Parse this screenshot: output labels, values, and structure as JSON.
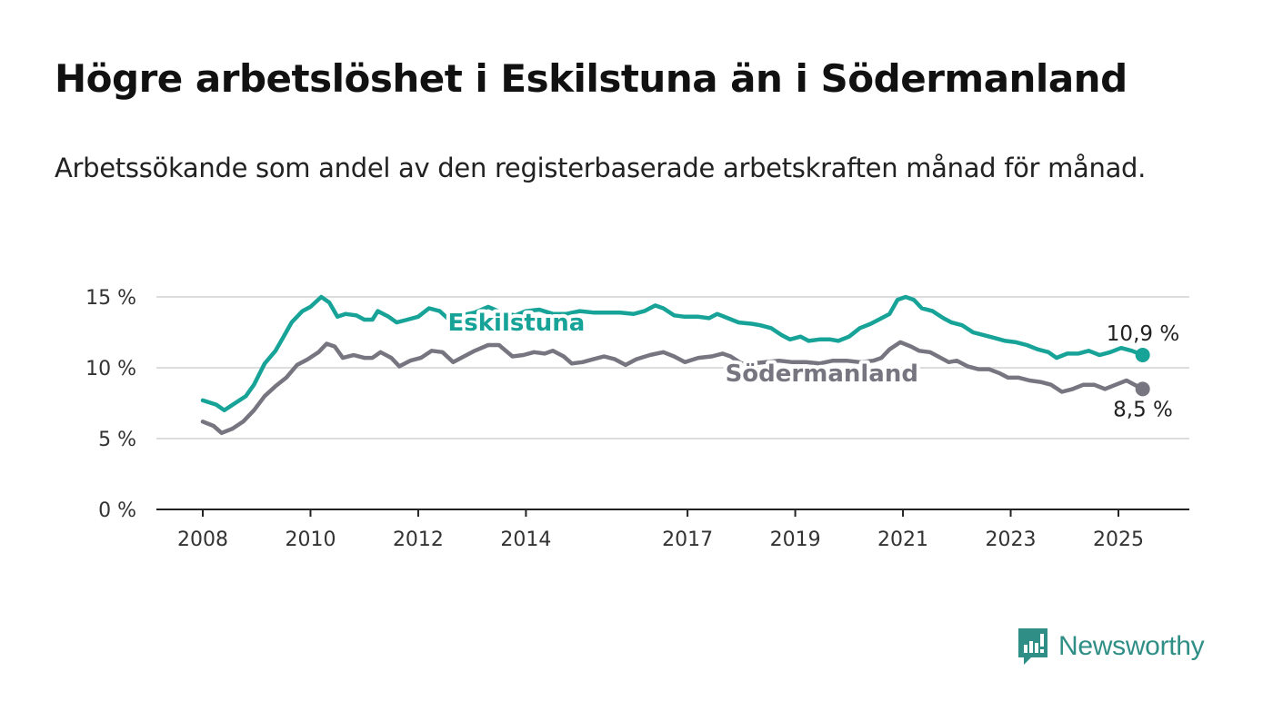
{
  "title": "Högre arbetslöshet i Eskilstuna än i Södermanland",
  "subtitle": "Arbetssökande som andel av den registerbaserade arbetskraften månad för månad.",
  "brand": {
    "name": "Newsworthy",
    "icon": "newsworthy-logo-icon",
    "color": "#2f8f86"
  },
  "chart_data": {
    "type": "line",
    "title": "Högre arbetslöshet i Eskilstuna än i Södermanland",
    "subtitle": "Arbetssökande som andel av den registerbaserade arbetskraften månad för månad.",
    "xlabel": "",
    "ylabel": "",
    "xlim": [
      2007.8,
      2026.3
    ],
    "ylim": [
      0,
      15
    ],
    "y_ticks": [
      0,
      5,
      10,
      15
    ],
    "y_tick_labels": [
      "0 %",
      "5 %",
      "10 %",
      "15 %"
    ],
    "x_ticks": [
      2008,
      2010,
      2012,
      2014,
      2017,
      2019,
      2021,
      2023,
      2025
    ],
    "x_tick_labels": [
      "2008",
      "2010",
      "2012",
      "2014",
      "2017",
      "2019",
      "2021",
      "2023",
      "2025"
    ],
    "grid": "horizontal",
    "legend": "inline labels",
    "series": [
      {
        "name": "Eskilstuna",
        "color": "#17a398",
        "end_label": "10,9 %",
        "points": [
          [
            2008.0,
            7.7
          ],
          [
            2008.25,
            7.4
          ],
          [
            2008.4,
            7.0
          ],
          [
            2008.6,
            7.5
          ],
          [
            2008.8,
            8.0
          ],
          [
            2008.95,
            8.8
          ],
          [
            2009.15,
            10.3
          ],
          [
            2009.35,
            11.2
          ],
          [
            2009.5,
            12.2
          ],
          [
            2009.65,
            13.2
          ],
          [
            2009.85,
            14.0
          ],
          [
            2010.0,
            14.3
          ],
          [
            2010.2,
            15.0
          ],
          [
            2010.35,
            14.6
          ],
          [
            2010.5,
            13.6
          ],
          [
            2010.65,
            13.8
          ],
          [
            2010.85,
            13.7
          ],
          [
            2011.0,
            13.4
          ],
          [
            2011.15,
            13.4
          ],
          [
            2011.25,
            14.0
          ],
          [
            2011.45,
            13.6
          ],
          [
            2011.6,
            13.2
          ],
          [
            2011.8,
            13.4
          ],
          [
            2012.0,
            13.6
          ],
          [
            2012.2,
            14.2
          ],
          [
            2012.4,
            14.0
          ],
          [
            2012.6,
            13.3
          ],
          [
            2012.8,
            13.7
          ],
          [
            2013.05,
            13.9
          ],
          [
            2013.3,
            14.3
          ],
          [
            2013.55,
            13.9
          ],
          [
            2013.8,
            13.7
          ],
          [
            2014.0,
            14.0
          ],
          [
            2014.25,
            14.1
          ],
          [
            2014.5,
            13.8
          ],
          [
            2014.75,
            13.8
          ],
          [
            2015.0,
            14.0
          ],
          [
            2015.25,
            13.9
          ],
          [
            2015.5,
            13.9
          ],
          [
            2015.75,
            13.9
          ],
          [
            2016.0,
            13.8
          ],
          [
            2016.2,
            14.0
          ],
          [
            2016.4,
            14.4
          ],
          [
            2016.55,
            14.2
          ],
          [
            2016.75,
            13.7
          ],
          [
            2016.95,
            13.6
          ],
          [
            2017.2,
            13.6
          ],
          [
            2017.4,
            13.5
          ],
          [
            2017.55,
            13.8
          ],
          [
            2017.75,
            13.5
          ],
          [
            2017.95,
            13.2
          ],
          [
            2018.2,
            13.1
          ],
          [
            2018.35,
            13.0
          ],
          [
            2018.55,
            12.8
          ],
          [
            2018.75,
            12.3
          ],
          [
            2018.9,
            12.0
          ],
          [
            2019.1,
            12.2
          ],
          [
            2019.25,
            11.9
          ],
          [
            2019.45,
            12.0
          ],
          [
            2019.65,
            12.0
          ],
          [
            2019.8,
            11.9
          ],
          [
            2020.0,
            12.2
          ],
          [
            2020.2,
            12.8
          ],
          [
            2020.4,
            13.1
          ],
          [
            2020.55,
            13.4
          ],
          [
            2020.75,
            13.8
          ],
          [
            2020.9,
            14.8
          ],
          [
            2021.05,
            15.0
          ],
          [
            2021.2,
            14.8
          ],
          [
            2021.35,
            14.2
          ],
          [
            2021.55,
            14.0
          ],
          [
            2021.75,
            13.5
          ],
          [
            2021.9,
            13.2
          ],
          [
            2022.1,
            13.0
          ],
          [
            2022.3,
            12.5
          ],
          [
            2022.5,
            12.3
          ],
          [
            2022.7,
            12.1
          ],
          [
            2022.9,
            11.9
          ],
          [
            2023.1,
            11.8
          ],
          [
            2023.3,
            11.6
          ],
          [
            2023.5,
            11.3
          ],
          [
            2023.7,
            11.1
          ],
          [
            2023.85,
            10.7
          ],
          [
            2024.05,
            11.0
          ],
          [
            2024.25,
            11.0
          ],
          [
            2024.45,
            11.2
          ],
          [
            2024.65,
            10.9
          ],
          [
            2024.85,
            11.1
          ],
          [
            2025.05,
            11.4
          ],
          [
            2025.25,
            11.2
          ],
          [
            2025.45,
            10.9
          ]
        ]
      },
      {
        "name": "Södermanland",
        "color": "#77757f",
        "end_label": "8,5 %",
        "points": [
          [
            2008.0,
            6.2
          ],
          [
            2008.2,
            5.9
          ],
          [
            2008.35,
            5.4
          ],
          [
            2008.55,
            5.7
          ],
          [
            2008.75,
            6.2
          ],
          [
            2008.95,
            7.0
          ],
          [
            2009.15,
            8.0
          ],
          [
            2009.35,
            8.7
          ],
          [
            2009.55,
            9.3
          ],
          [
            2009.75,
            10.2
          ],
          [
            2009.95,
            10.6
          ],
          [
            2010.15,
            11.1
          ],
          [
            2010.3,
            11.7
          ],
          [
            2010.45,
            11.5
          ],
          [
            2010.6,
            10.7
          ],
          [
            2010.8,
            10.9
          ],
          [
            2011.0,
            10.7
          ],
          [
            2011.15,
            10.7
          ],
          [
            2011.3,
            11.1
          ],
          [
            2011.5,
            10.7
          ],
          [
            2011.65,
            10.1
          ],
          [
            2011.85,
            10.5
          ],
          [
            2012.05,
            10.7
          ],
          [
            2012.25,
            11.2
          ],
          [
            2012.45,
            11.1
          ],
          [
            2012.65,
            10.4
          ],
          [
            2012.85,
            10.8
          ],
          [
            2013.05,
            11.2
          ],
          [
            2013.3,
            11.6
          ],
          [
            2013.5,
            11.6
          ],
          [
            2013.75,
            10.8
          ],
          [
            2013.95,
            10.9
          ],
          [
            2014.15,
            11.1
          ],
          [
            2014.35,
            11.0
          ],
          [
            2014.5,
            11.2
          ],
          [
            2014.7,
            10.8
          ],
          [
            2014.85,
            10.3
          ],
          [
            2015.05,
            10.4
          ],
          [
            2015.25,
            10.6
          ],
          [
            2015.45,
            10.8
          ],
          [
            2015.65,
            10.6
          ],
          [
            2015.85,
            10.2
          ],
          [
            2016.05,
            10.6
          ],
          [
            2016.3,
            10.9
          ],
          [
            2016.55,
            11.1
          ],
          [
            2016.75,
            10.8
          ],
          [
            2016.95,
            10.4
          ],
          [
            2017.2,
            10.7
          ],
          [
            2017.45,
            10.8
          ],
          [
            2017.65,
            11.0
          ],
          [
            2017.8,
            10.8
          ],
          [
            2018.0,
            10.3
          ],
          [
            2018.2,
            10.3
          ],
          [
            2018.45,
            10.4
          ],
          [
            2018.7,
            10.5
          ],
          [
            2018.95,
            10.4
          ],
          [
            2019.2,
            10.4
          ],
          [
            2019.45,
            10.3
          ],
          [
            2019.7,
            10.5
          ],
          [
            2019.95,
            10.5
          ],
          [
            2020.2,
            10.4
          ],
          [
            2020.45,
            10.5
          ],
          [
            2020.6,
            10.7
          ],
          [
            2020.75,
            11.3
          ],
          [
            2020.95,
            11.8
          ],
          [
            2021.15,
            11.5
          ],
          [
            2021.3,
            11.2
          ],
          [
            2021.5,
            11.1
          ],
          [
            2021.65,
            10.8
          ],
          [
            2021.85,
            10.4
          ],
          [
            2022.0,
            10.5
          ],
          [
            2022.2,
            10.1
          ],
          [
            2022.4,
            9.9
          ],
          [
            2022.6,
            9.9
          ],
          [
            2022.8,
            9.6
          ],
          [
            2022.95,
            9.3
          ],
          [
            2023.15,
            9.3
          ],
          [
            2023.35,
            9.1
          ],
          [
            2023.55,
            9.0
          ],
          [
            2023.75,
            8.8
          ],
          [
            2023.95,
            8.3
          ],
          [
            2024.15,
            8.5
          ],
          [
            2024.35,
            8.8
          ],
          [
            2024.55,
            8.8
          ],
          [
            2024.75,
            8.5
          ],
          [
            2024.95,
            8.8
          ],
          [
            2025.15,
            9.1
          ],
          [
            2025.3,
            8.8
          ],
          [
            2025.45,
            8.5
          ]
        ]
      }
    ]
  }
}
